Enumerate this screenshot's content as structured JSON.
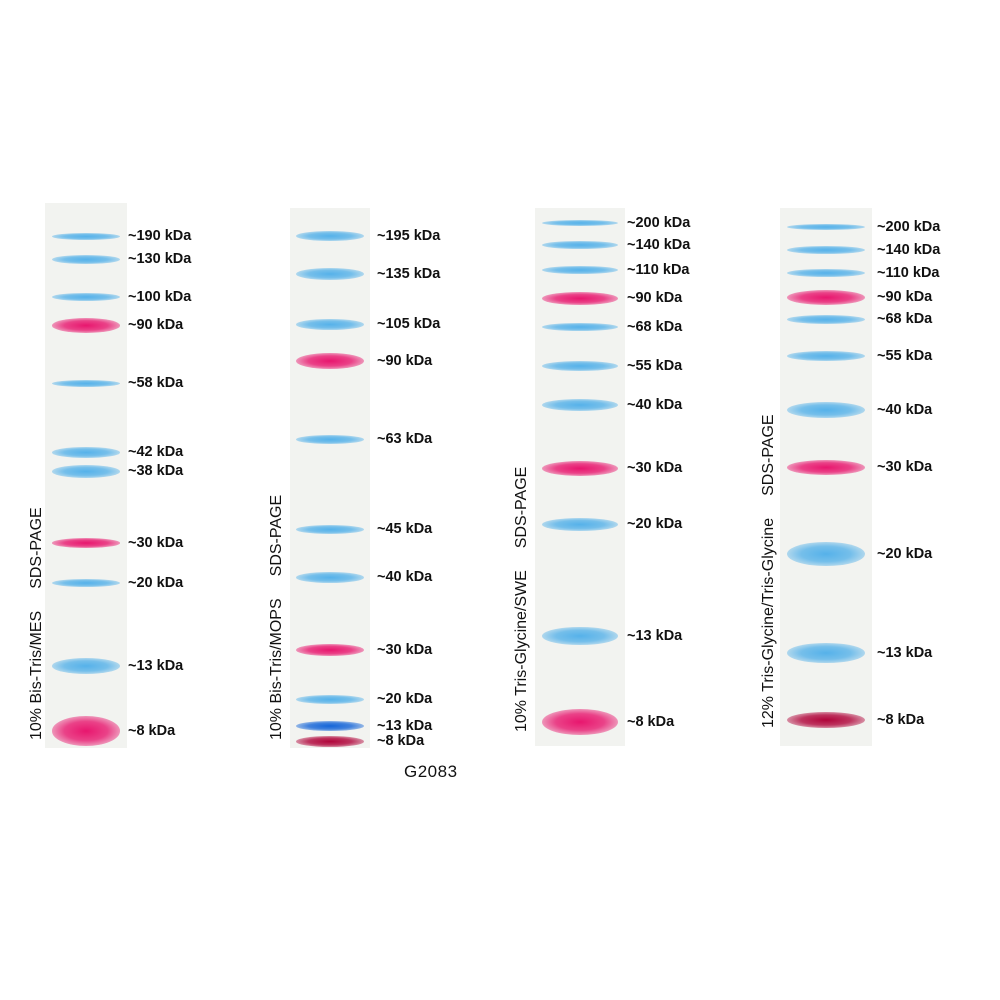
{
  "catalog": "G2083",
  "colors": {
    "blue": "#3aa6e8",
    "red": "#e8166e",
    "dark_red": "#b0043a",
    "dark_blue": "#1565d8"
  },
  "gels": [
    {
      "condition": "10% Bis-Tris/MES",
      "method": "SDS-PAGE",
      "markers": [
        {
          "label": "~190 kDa",
          "color": "blue"
        },
        {
          "label": "~130 kDa",
          "color": "blue"
        },
        {
          "label": "~100 kDa",
          "color": "blue"
        },
        {
          "label": "~90 kDa",
          "color": "red"
        },
        {
          "label": "~58 kDa",
          "color": "blue"
        },
        {
          "label": "~42 kDa",
          "color": "blue"
        },
        {
          "label": "~38 kDa",
          "color": "blue"
        },
        {
          "label": "~30 kDa",
          "color": "red"
        },
        {
          "label": "~20 kDa",
          "color": "blue"
        },
        {
          "label": "~13 kDa",
          "color": "blue"
        },
        {
          "label": "~8 kDa",
          "color": "red"
        }
      ]
    },
    {
      "condition": "10% Bis-Tris/MOPS",
      "method": "SDS-PAGE",
      "markers": [
        {
          "label": "~195 kDa",
          "color": "blue"
        },
        {
          "label": "~135 kDa",
          "color": "blue"
        },
        {
          "label": "~105 kDa",
          "color": "blue"
        },
        {
          "label": "~90 kDa",
          "color": "red"
        },
        {
          "label": "~63 kDa",
          "color": "blue"
        },
        {
          "label": "~45 kDa",
          "color": "blue"
        },
        {
          "label": "~40 kDa",
          "color": "blue"
        },
        {
          "label": "~30 kDa",
          "color": "red"
        },
        {
          "label": "~20 kDa",
          "color": "blue"
        },
        {
          "label": "~13 kDa",
          "color": "dark_blue"
        },
        {
          "label": "~8 kDa",
          "color": "dark_red"
        }
      ]
    },
    {
      "condition": "10% Tris-Glycine/SWE",
      "method": "SDS-PAGE",
      "markers": [
        {
          "label": "~200 kDa",
          "color": "blue"
        },
        {
          "label": "~140 kDa",
          "color": "blue"
        },
        {
          "label": "~110 kDa",
          "color": "blue"
        },
        {
          "label": "~90 kDa",
          "color": "red"
        },
        {
          "label": "~68 kDa",
          "color": "blue"
        },
        {
          "label": "~55 kDa",
          "color": "blue"
        },
        {
          "label": "~40 kDa",
          "color": "blue"
        },
        {
          "label": "~30 kDa",
          "color": "red"
        },
        {
          "label": "~20 kDa",
          "color": "blue"
        },
        {
          "label": "~13 kDa",
          "color": "blue"
        },
        {
          "label": "~8 kDa",
          "color": "red"
        }
      ]
    },
    {
      "condition": "12% Tris-Glycine/Tris-Glycine",
      "method": "SDS-PAGE",
      "markers": [
        {
          "label": "~200 kDa",
          "color": "blue"
        },
        {
          "label": "~140 kDa",
          "color": "blue"
        },
        {
          "label": "~110 kDa",
          "color": "blue"
        },
        {
          "label": "~90 kDa",
          "color": "red"
        },
        {
          "label": "~68 kDa",
          "color": "blue"
        },
        {
          "label": "~55 kDa",
          "color": "blue"
        },
        {
          "label": "~40 kDa",
          "color": "blue"
        },
        {
          "label": "~30 kDa",
          "color": "red"
        },
        {
          "label": "~20 kDa",
          "color": "blue"
        },
        {
          "label": "~13 kDa",
          "color": "blue"
        },
        {
          "label": "~8 kDa",
          "color": "dark_red"
        }
      ]
    }
  ]
}
